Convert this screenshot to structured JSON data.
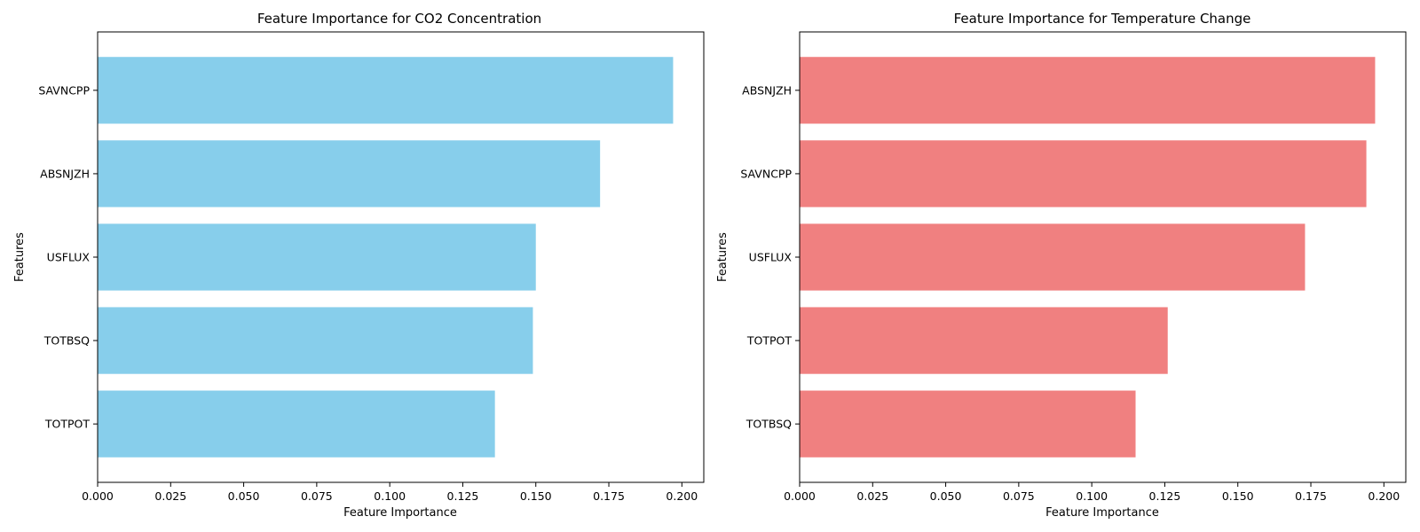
{
  "chart_data": [
    {
      "type": "bar",
      "orientation": "horizontal",
      "title": "Feature Importance for CO2 Concentration",
      "xlabel": "Feature Importance",
      "ylabel": "Features",
      "categories": [
        "SAVNCPP",
        "ABSNJZH",
        "USFLUX",
        "TOTBSQ",
        "TOTPOT"
      ],
      "values": [
        0.197,
        0.172,
        0.15,
        0.149,
        0.136
      ],
      "xlim": [
        0,
        0.2075
      ],
      "xticks": [
        0.0,
        0.025,
        0.05,
        0.075,
        0.1,
        0.125,
        0.15,
        0.175,
        0.2
      ],
      "xtick_labels": [
        "0.000",
        "0.025",
        "0.050",
        "0.075",
        "0.100",
        "0.125",
        "0.150",
        "0.175",
        "0.200"
      ],
      "color": "#87ceeb",
      "grid": false
    },
    {
      "type": "bar",
      "orientation": "horizontal",
      "title": "Feature Importance for Temperature Change",
      "xlabel": "Feature Importance",
      "ylabel": "Features",
      "categories": [
        "ABSNJZH",
        "SAVNCPP",
        "USFLUX",
        "TOTPOT",
        "TOTBSQ"
      ],
      "values": [
        0.197,
        0.194,
        0.173,
        0.126,
        0.115
      ],
      "xlim": [
        0,
        0.2075
      ],
      "xticks": [
        0.0,
        0.025,
        0.05,
        0.075,
        0.1,
        0.125,
        0.15,
        0.175,
        0.2
      ],
      "xtick_labels": [
        "0.000",
        "0.025",
        "0.050",
        "0.075",
        "0.100",
        "0.125",
        "0.150",
        "0.175",
        "0.200"
      ],
      "color": "#f08080",
      "grid": false
    }
  ]
}
